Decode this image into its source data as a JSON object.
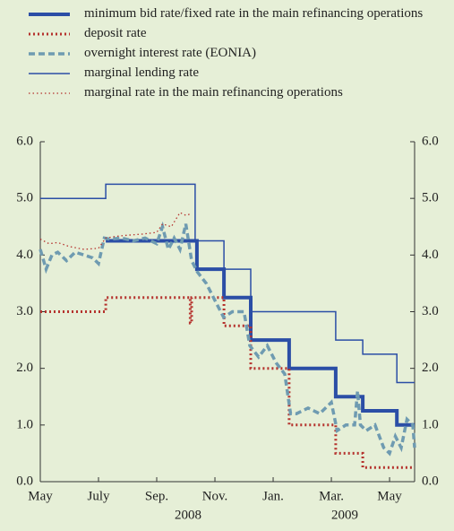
{
  "chart_data": {
    "type": "line",
    "series": [
      {
        "name": "minimum bid rate/fixed rate in the main refinancing operations",
        "color": "#2b4ea6",
        "width": 4,
        "dash": "none",
        "x": [
          2.25,
          5.38,
          5.38,
          6.31,
          6.31,
          7.23,
          7.23,
          8.55,
          8.55,
          10.15,
          10.15,
          11.08,
          11.08,
          12.25,
          12.25,
          12.86
        ],
        "values": [
          4.25,
          4.25,
          3.75,
          3.75,
          3.25,
          3.25,
          2.5,
          2.5,
          2,
          2,
          1.5,
          1.5,
          1.25,
          1.25,
          1,
          1
        ]
      },
      {
        "name": "deposit rate",
        "color": "#b5332e",
        "width": 3,
        "dash": "2 3",
        "x": [
          0,
          2.25,
          2.25,
          5.15,
          5.15,
          5.2,
          5.2,
          6.31,
          6.31,
          7.23,
          7.23,
          8.55,
          8.55,
          10.15,
          10.15,
          11.08,
          11.08,
          12.86
        ],
        "values": [
          3,
          3,
          3.25,
          3.25,
          2.8,
          2.8,
          3.25,
          3.25,
          2.75,
          2.75,
          2,
          2,
          1,
          1,
          0.5,
          0.5,
          0.25,
          0.25
        ]
      },
      {
        "name": "overnight interest rate (EONIA)",
        "color": "#6f9bb1",
        "width": 3.5,
        "dash": "7 4",
        "x": [
          0,
          0.2,
          0.4,
          0.6,
          0.9,
          1.2,
          1.5,
          1.8,
          2.0,
          2.2,
          2.4,
          2.8,
          3.2,
          3.6,
          4.0,
          4.2,
          4.4,
          4.6,
          4.8,
          5.0,
          5.2,
          5.4,
          5.7,
          6.0,
          6.3,
          6.6,
          7.0,
          7.2,
          7.5,
          7.8,
          8.1,
          8.4,
          8.6,
          8.8,
          9.2,
          9.6,
          10.0,
          10.2,
          10.5,
          10.8,
          10.9,
          11.0,
          11.2,
          11.5,
          11.8,
          12.0,
          12.2,
          12.4,
          12.6,
          12.8,
          12.86
        ],
        "values": [
          4.1,
          3.75,
          4.0,
          4.05,
          3.9,
          4.05,
          4.0,
          3.95,
          3.85,
          4.3,
          4.28,
          4.3,
          4.25,
          4.3,
          4.2,
          4.5,
          4.1,
          4.3,
          4.1,
          4.55,
          3.9,
          3.7,
          3.5,
          3.2,
          2.9,
          3.0,
          3.0,
          2.4,
          2.2,
          2.4,
          2.1,
          1.9,
          1.2,
          1.2,
          1.3,
          1.2,
          1.4,
          0.9,
          1.0,
          1.0,
          1.6,
          1.0,
          0.9,
          1.0,
          0.6,
          0.5,
          0.8,
          0.6,
          1.1,
          1.0,
          0.6
        ]
      },
      {
        "name": "marginal lending rate",
        "color": "#2b4ea6",
        "width": 1.5,
        "dash": "none",
        "x": [
          0,
          2.25,
          2.25,
          5.32,
          5.32,
          6.31,
          6.31,
          7.23,
          7.23,
          10.15,
          10.15,
          11.08,
          11.08,
          12.25,
          12.25,
          12.86
        ],
        "values": [
          5,
          5,
          5.25,
          5.25,
          4.25,
          4.25,
          3.75,
          3.75,
          3,
          3,
          2.5,
          2.5,
          2.25,
          2.25,
          1.75,
          1.75
        ]
      },
      {
        "name": "marginal rate in the main refinancing operations",
        "color": "#b5332e",
        "width": 1.3,
        "dash": "1.5 3",
        "x": [
          0,
          0.3,
          0.6,
          1,
          1.5,
          2,
          2.25,
          2.6,
          3,
          3.5,
          4,
          4.2,
          4.5,
          4.8,
          5.0,
          5.2
        ],
        "values": [
          4.28,
          4.2,
          4.22,
          4.15,
          4.1,
          4.12,
          4.3,
          4.33,
          4.35,
          4.37,
          4.4,
          4.55,
          4.5,
          4.75,
          4.7,
          4.73
        ]
      }
    ],
    "xlim": [
      0,
      12.86
    ],
    "xticks": [
      {
        "value": 0,
        "label": "May"
      },
      {
        "value": 2,
        "label": "July"
      },
      {
        "value": 4,
        "label": "Sep."
      },
      {
        "value": 6,
        "label": "Nov."
      },
      {
        "value": 8,
        "label": "Jan."
      },
      {
        "value": 10,
        "label": "Mar."
      },
      {
        "value": 12,
        "label": "May"
      }
    ],
    "year_labels": [
      "2008",
      "2009"
    ],
    "ylim": [
      0,
      6
    ],
    "yticks": [
      {
        "value": 0,
        "label": "0.0"
      },
      {
        "value": 1,
        "label": "1.0"
      },
      {
        "value": 2,
        "label": "2.0"
      },
      {
        "value": 3,
        "label": "3.0"
      },
      {
        "value": 4,
        "label": "4.0"
      },
      {
        "value": 5,
        "label": "5.0"
      },
      {
        "value": 6,
        "label": "6.0"
      }
    ],
    "y2lim": [
      0,
      6
    ],
    "y2ticks": [
      {
        "value": 0,
        "label": "0.0"
      },
      {
        "value": 1,
        "label": "1.0"
      },
      {
        "value": 2,
        "label": "2.0"
      },
      {
        "value": 3,
        "label": "3.0"
      },
      {
        "value": 4,
        "label": "4.0"
      },
      {
        "value": 5,
        "label": "5.0"
      },
      {
        "value": 6,
        "label": "6.0"
      }
    ],
    "grid": false
  }
}
